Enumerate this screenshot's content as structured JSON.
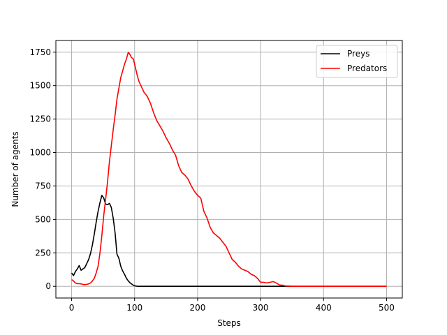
{
  "chart_data": {
    "type": "line",
    "xlabel": "Steps",
    "ylabel": "Number of agents",
    "xlim": [
      -25,
      525
    ],
    "ylim": [
      -87.5,
      1837.5
    ],
    "xticks": [
      0,
      100,
      200,
      300,
      400,
      500
    ],
    "yticks": [
      0,
      250,
      500,
      750,
      1000,
      1250,
      1500,
      1750
    ],
    "grid": true,
    "legend_position": "top-right",
    "series": [
      {
        "name": "Preys",
        "color": "#000000",
        "x": [
          0,
          3,
          6,
          9,
          12,
          15,
          18,
          21,
          24,
          27,
          30,
          33,
          36,
          39,
          42,
          45,
          48,
          51,
          54,
          57,
          60,
          63,
          66,
          69,
          72,
          75,
          78,
          81,
          84,
          87,
          90,
          93,
          96,
          99,
          102,
          105,
          120,
          150,
          200,
          250,
          300,
          350,
          400,
          450,
          500
        ],
        "y": [
          100,
          80,
          110,
          130,
          155,
          120,
          130,
          140,
          170,
          200,
          245,
          310,
          390,
          480,
          560,
          625,
          680,
          660,
          615,
          610,
          620,
          590,
          510,
          400,
          240,
          210,
          150,
          115,
          90,
          60,
          40,
          25,
          15,
          5,
          2,
          0,
          0,
          0,
          0,
          0,
          0,
          0,
          0,
          0,
          0
        ]
      },
      {
        "name": "Predators",
        "color": "#ff0000",
        "x": [
          0,
          3,
          6,
          9,
          12,
          15,
          18,
          21,
          24,
          27,
          30,
          33,
          36,
          39,
          42,
          45,
          48,
          51,
          54,
          57,
          60,
          63,
          66,
          69,
          72,
          75,
          78,
          81,
          84,
          87,
          90,
          93,
          95,
          98,
          101,
          104,
          107,
          110,
          115,
          120,
          125,
          130,
          135,
          140,
          145,
          150,
          155,
          160,
          165,
          170,
          175,
          180,
          185,
          190,
          195,
          200,
          205,
          210,
          215,
          220,
          225,
          230,
          235,
          240,
          245,
          250,
          255,
          260,
          265,
          270,
          275,
          280,
          285,
          290,
          295,
          300,
          305,
          310,
          315,
          320,
          325,
          330,
          335,
          340,
          350,
          400,
          450,
          500
        ],
        "y": [
          50,
          40,
          25,
          20,
          20,
          18,
          14,
          12,
          15,
          18,
          25,
          40,
          60,
          100,
          150,
          250,
          380,
          530,
          650,
          780,
          930,
          1050,
          1170,
          1280,
          1400,
          1480,
          1560,
          1610,
          1660,
          1700,
          1750,
          1730,
          1710,
          1700,
          1640,
          1580,
          1530,
          1500,
          1450,
          1420,
          1370,
          1300,
          1240,
          1200,
          1160,
          1110,
          1070,
          1020,
          980,
          900,
          850,
          830,
          800,
          750,
          710,
          680,
          660,
          560,
          510,
          440,
          400,
          380,
          360,
          330,
          300,
          250,
          200,
          180,
          150,
          130,
          120,
          110,
          90,
          80,
          60,
          30,
          30,
          25,
          30,
          35,
          25,
          10,
          8,
          2,
          0,
          0,
          0,
          0
        ]
      }
    ]
  }
}
